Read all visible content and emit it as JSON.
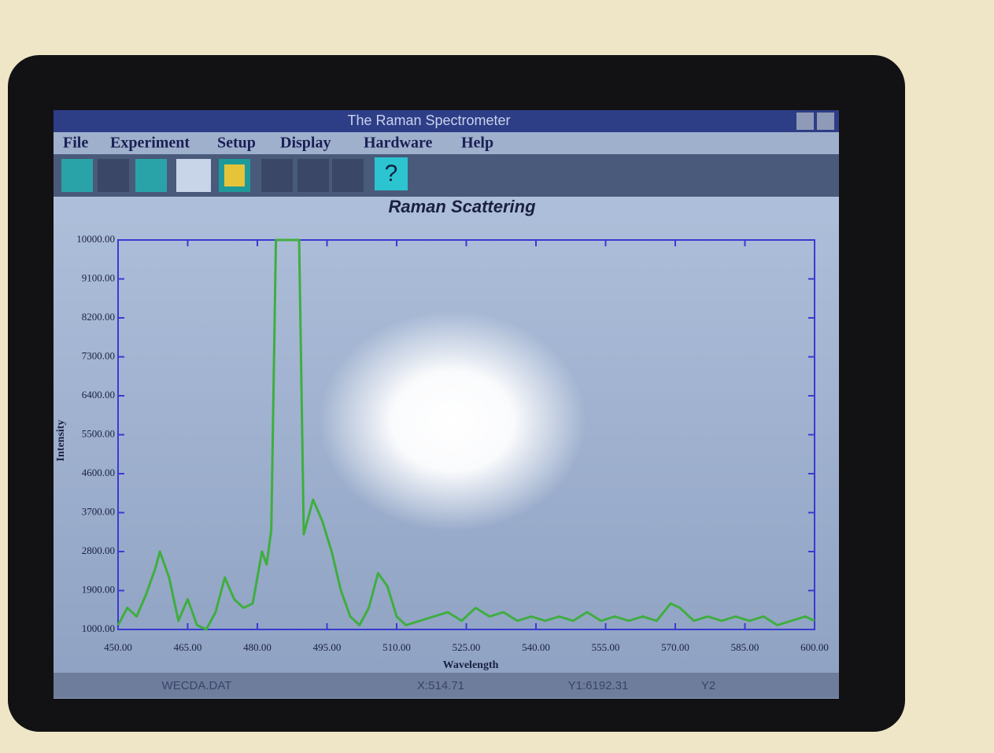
{
  "window_title": "The Raman Spectrometer",
  "menu": [
    "File",
    "Experiment",
    "Setup",
    "Display",
    "Hardware",
    "Help"
  ],
  "toolbar": {
    "help_button": "?"
  },
  "status_bar": [
    "WECDA.DAT",
    "X:514.71",
    "Y1:6192.31",
    "Y2"
  ],
  "chart_data": {
    "type": "line",
    "title": "Raman Scattering",
    "x_label": "Wavelength",
    "y_label": "Intensity",
    "x": [
      450,
      452,
      454,
      456,
      458,
      459,
      461,
      463,
      465,
      467,
      469,
      471,
      473,
      475,
      477,
      479,
      481,
      482,
      483,
      484,
      489,
      490,
      492,
      494,
      496,
      498,
      500,
      502,
      504,
      506,
      508,
      510,
      512,
      515,
      518,
      521,
      524,
      527,
      530,
      533,
      536,
      539,
      542,
      545,
      548,
      551,
      554,
      557,
      560,
      563,
      566,
      569,
      571,
      574,
      577,
      580,
      583,
      586,
      589,
      592,
      595,
      598,
      600
    ],
    "series": [
      {
        "color": "#3fae3f",
        "values": [
          1100,
          1500,
          1300,
          1800,
          2400,
          2800,
          2200,
          1200,
          1700,
          1100,
          1000,
          1400,
          2200,
          1700,
          1500,
          1600,
          2800,
          2500,
          3300,
          10000,
          10000,
          3200,
          4000,
          3500,
          2800,
          1900,
          1300,
          1100,
          1500,
          2300,
          2000,
          1300,
          1100,
          1200,
          1300,
          1400,
          1200,
          1500,
          1300,
          1400,
          1200,
          1300,
          1200,
          1300,
          1200,
          1400,
          1200,
          1300,
          1200,
          1300,
          1200,
          1600,
          1500,
          1200,
          1300,
          1200,
          1300,
          1200,
          1300,
          1100,
          1200,
          1300,
          1200
        ]
      }
    ],
    "xlim": [
      450,
      600
    ],
    "xticks": [
      {
        "value": 450,
        "label": "450.00"
      },
      {
        "value": 465,
        "label": "465.00"
      },
      {
        "value": 480,
        "label": "480.00"
      },
      {
        "value": 495,
        "label": "495.00"
      },
      {
        "value": 510,
        "label": "510.00"
      },
      {
        "value": 525,
        "label": "525.00"
      },
      {
        "value": 540,
        "label": "540.00"
      },
      {
        "value": 555,
        "label": "555.00"
      },
      {
        "value": 570,
        "label": "570.00"
      },
      {
        "value": 585,
        "label": "585.00"
      },
      {
        "value": 600,
        "label": "600.00"
      }
    ],
    "ylim": [
      1000,
      10000
    ],
    "yticks": [
      {
        "value": 1000,
        "label": "1000.00"
      },
      {
        "value": 1900,
        "label": "1900.00"
      },
      {
        "value": 2800,
        "label": "2800.00"
      },
      {
        "value": 3700,
        "label": "3700.00"
      },
      {
        "value": 4600,
        "label": "4600.00"
      },
      {
        "value": 5500,
        "label": "5500.00"
      },
      {
        "value": 6400,
        "label": "6400.00"
      },
      {
        "value": 7300,
        "label": "7300.00"
      },
      {
        "value": 8200,
        "label": "8200.00"
      },
      {
        "value": 9100,
        "label": "9100.00"
      },
      {
        "value": 10000,
        "label": "10000.00"
      }
    ],
    "axis_color": "#3a3ad0"
  }
}
